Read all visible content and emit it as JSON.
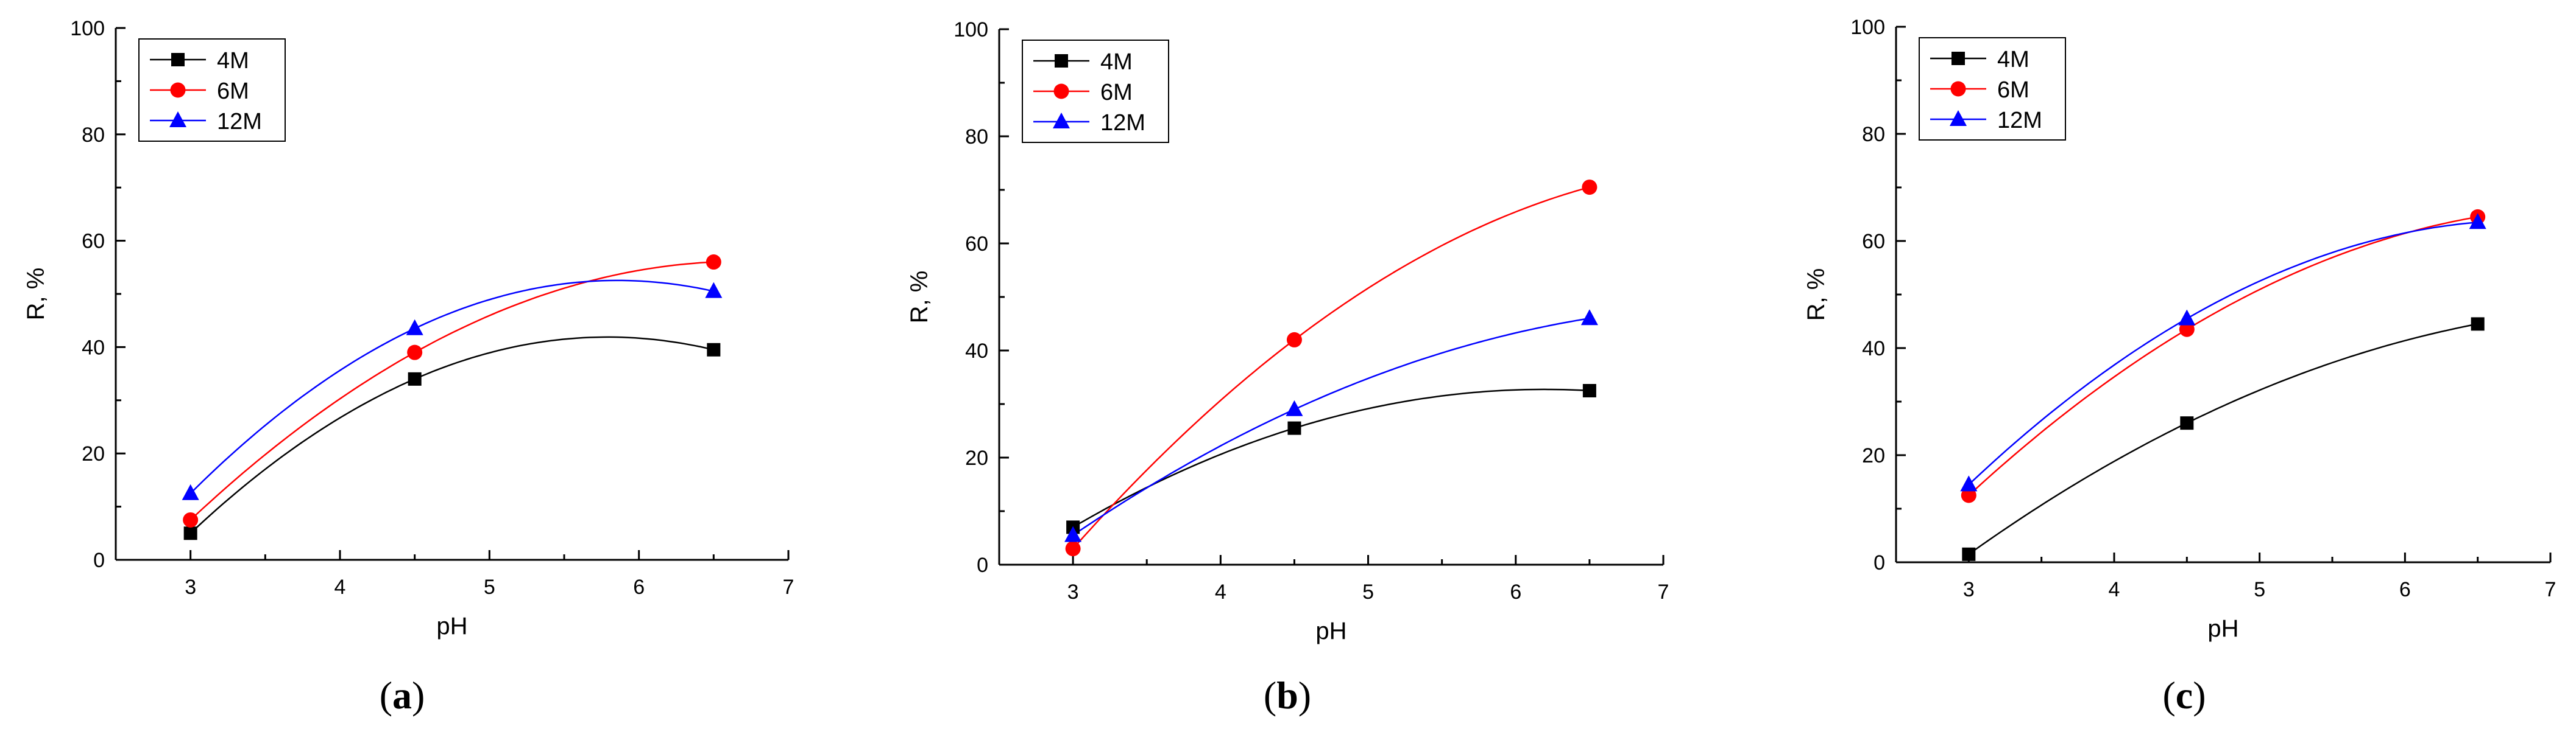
{
  "chart_data": [
    {
      "type": "scatter",
      "caption_open": "(",
      "caption_letter": "a",
      "caption_close": ")",
      "xlabel": "pH",
      "ylabel": "R, %",
      "xlim": [
        2.5,
        7
      ],
      "ylim": [
        0,
        100
      ],
      "xticks": [
        3,
        4,
        5,
        6,
        7
      ],
      "yticks": [
        0,
        20,
        40,
        60,
        80,
        100
      ],
      "legend_position": "top-left",
      "series": [
        {
          "name": "4M",
          "marker": "square",
          "color": "#000000",
          "x": [
            3,
            4.5,
            6.5
          ],
          "values": [
            5,
            34,
            39.5
          ]
        },
        {
          "name": "6M",
          "marker": "circle",
          "color": "#ff0000",
          "x": [
            3,
            4.5,
            6.5
          ],
          "values": [
            7.5,
            39,
            56
          ]
        },
        {
          "name": "12M",
          "marker": "triangle",
          "color": "#0000ff",
          "x": [
            3,
            4.5,
            6.5
          ],
          "values": [
            12.5,
            43.5,
            50.5
          ]
        }
      ]
    },
    {
      "type": "scatter",
      "caption_open": "(",
      "caption_letter": "b",
      "caption_close": ")",
      "xlabel": "pH",
      "ylabel": "R, %",
      "xlim": [
        2.5,
        7
      ],
      "ylim": [
        0,
        100
      ],
      "xticks": [
        3,
        4,
        5,
        6,
        7
      ],
      "yticks": [
        0,
        20,
        40,
        60,
        80,
        100
      ],
      "legend_position": "top-left",
      "series": [
        {
          "name": "4M",
          "marker": "square",
          "color": "#000000",
          "x": [
            3,
            4.5,
            6.5
          ],
          "values": [
            7,
            25.5,
            32.5
          ]
        },
        {
          "name": "6M",
          "marker": "circle",
          "color": "#ff0000",
          "x": [
            3,
            4.5,
            6.5
          ],
          "values": [
            3,
            42,
            70.5
          ]
        },
        {
          "name": "12M",
          "marker": "triangle",
          "color": "#0000ff",
          "x": [
            3,
            4.5,
            6.5
          ],
          "values": [
            5.5,
            29,
            46
          ]
        }
      ]
    },
    {
      "type": "scatter",
      "caption_open": "(",
      "caption_letter": "c",
      "caption_close": ")",
      "xlabel": "pH",
      "ylabel": "R, %",
      "xlim": [
        2.5,
        7
      ],
      "ylim": [
        0,
        100
      ],
      "xticks": [
        3,
        4,
        5,
        6,
        7
      ],
      "yticks": [
        0,
        20,
        40,
        60,
        80,
        100
      ],
      "legend_position": "top-left",
      "series": [
        {
          "name": "4M",
          "marker": "square",
          "color": "#000000",
          "x": [
            3,
            4.5,
            6.5
          ],
          "values": [
            1.5,
            26,
            44.5
          ]
        },
        {
          "name": "6M",
          "marker": "circle",
          "color": "#ff0000",
          "x": [
            3,
            4.5,
            6.5
          ],
          "values": [
            12.5,
            43.5,
            64.5
          ]
        },
        {
          "name": "12M",
          "marker": "triangle",
          "color": "#0000ff",
          "x": [
            3,
            4.5,
            6.5
          ],
          "values": [
            14.5,
            45.5,
            63.5
          ]
        }
      ]
    }
  ]
}
